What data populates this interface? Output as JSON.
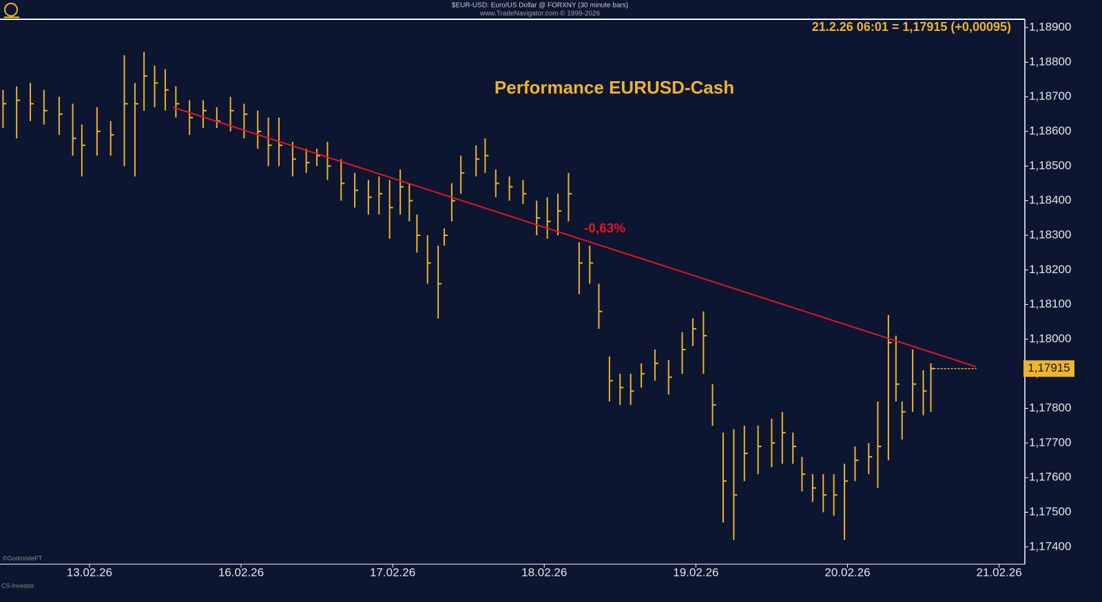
{
  "chart_data": {
    "type": "hlc",
    "source": "$EUR-USD: Euro/US Dollar @ FORXNY  (30 minute bars)",
    "copyright": "www.TradeNavigator.com © 1999-2026",
    "title": "Performance EURUSD-Cash",
    "quote": "21.2.26 06:01 = 1,17915 (+0,00095)",
    "footer_top": "©GodmodeFT",
    "footer_bottom": "CS-Investor",
    "color": "#f0b428",
    "x": [
      -0.57,
      -0.48,
      -0.39,
      -0.3,
      -0.2,
      -0.11,
      -0.05,
      0.05,
      0.14,
      0.23,
      0.3,
      0.36,
      0.43,
      0.5,
      0.57,
      0.66,
      0.75,
      0.84,
      0.93,
      1.02,
      1.11,
      1.18,
      1.25,
      1.34,
      1.43,
      1.5,
      1.57,
      1.66,
      1.75,
      1.84,
      1.91,
      1.98,
      2.05,
      2.11,
      2.16,
      2.23,
      2.3,
      2.34,
      2.39,
      2.45,
      2.55,
      2.61,
      2.68,
      2.77,
      2.86,
      2.95,
      3.02,
      3.09,
      3.16,
      3.23,
      3.3,
      3.36,
      3.43,
      3.5,
      3.57,
      3.64,
      3.73,
      3.82,
      3.91,
      3.98,
      4.05,
      4.11,
      4.18,
      4.25,
      4.32,
      4.41,
      4.5,
      4.57,
      4.64,
      4.7,
      4.77,
      4.84,
      4.91,
      4.98,
      5.05,
      5.14,
      5.2,
      5.27,
      5.32,
      5.36,
      5.43,
      5.5,
      5.55
    ],
    "high": [
      1.1872,
      1.1873,
      1.1874,
      1.1872,
      1.187,
      1.1868,
      1.1862,
      1.1867,
      1.1863,
      1.1882,
      1.1874,
      1.1883,
      1.1879,
      1.1878,
      1.1873,
      1.1869,
      1.1869,
      1.1867,
      1.187,
      1.1868,
      1.1866,
      1.1864,
      1.1864,
      1.1857,
      1.1855,
      1.1855,
      1.1857,
      1.1852,
      1.1848,
      1.1846,
      1.1847,
      1.1846,
      1.1849,
      1.1845,
      1.1836,
      1.183,
      1.1827,
      1.1832,
      1.1845,
      1.1853,
      1.1856,
      1.1858,
      1.1849,
      1.1847,
      1.1846,
      1.184,
      1.1841,
      1.1842,
      1.1848,
      1.1828,
      1.1827,
      1.1816,
      1.1795,
      1.179,
      1.179,
      1.1793,
      1.1797,
      1.1794,
      1.1802,
      1.1806,
      1.1808,
      1.1787,
      1.1773,
      1.1774,
      1.1775,
      1.1775,
      1.1777,
      1.1779,
      1.1773,
      1.1766,
      1.1761,
      1.1761,
      1.1761,
      1.1764,
      1.1769,
      1.177,
      1.1782,
      1.1807,
      1.1801,
      1.1782,
      1.1797,
      1.1791,
      1.1793
    ],
    "low": [
      1.1861,
      1.1858,
      1.1863,
      1.1862,
      1.1859,
      1.1853,
      1.1847,
      1.1853,
      1.1853,
      1.185,
      1.1847,
      1.1866,
      1.1867,
      1.1866,
      1.1864,
      1.1859,
      1.1861,
      1.1861,
      1.186,
      1.1858,
      1.1855,
      1.185,
      1.185,
      1.1847,
      1.1848,
      1.185,
      1.1846,
      1.184,
      1.1838,
      1.1836,
      1.1836,
      1.1829,
      1.1836,
      1.1834,
      1.1825,
      1.1816,
      1.1806,
      1.1827,
      1.1834,
      1.1842,
      1.1847,
      1.1848,
      1.1841,
      1.184,
      1.1839,
      1.183,
      1.1829,
      1.183,
      1.1834,
      1.1813,
      1.1816,
      1.1803,
      1.1782,
      1.1781,
      1.1781,
      1.1786,
      1.1788,
      1.1784,
      1.179,
      1.1798,
      1.179,
      1.1775,
      1.1747,
      1.1742,
      1.1759,
      1.1761,
      1.1763,
      1.1764,
      1.1764,
      1.1756,
      1.1753,
      1.175,
      1.1749,
      1.1742,
      1.1759,
      1.1761,
      1.1757,
      1.1765,
      1.1782,
      1.1771,
      1.1779,
      1.1778,
      1.1779
    ],
    "close": [
      1.1868,
      1.1869,
      1.1868,
      1.1866,
      1.1865,
      1.1858,
      1.1856,
      1.186,
      1.1859,
      1.1868,
      1.1868,
      1.1876,
      1.1874,
      1.1872,
      1.1868,
      1.1864,
      1.1866,
      1.1863,
      1.1866,
      1.1865,
      1.186,
      1.1856,
      1.1856,
      1.1852,
      1.1851,
      1.1853,
      1.185,
      1.1845,
      1.1843,
      1.1841,
      1.1842,
      1.1838,
      1.1844,
      1.184,
      1.183,
      1.1822,
      1.1816,
      1.183,
      1.184,
      1.1848,
      1.1852,
      1.1853,
      1.1845,
      1.1844,
      1.1842,
      1.1835,
      1.1834,
      1.1837,
      1.1842,
      1.1822,
      1.1822,
      1.1808,
      1.1788,
      1.1786,
      1.1785,
      1.179,
      1.1793,
      1.1789,
      1.1797,
      1.1803,
      1.1801,
      1.1781,
      1.1759,
      1.1755,
      1.1767,
      1.1769,
      1.177,
      1.1773,
      1.1769,
      1.1761,
      1.1757,
      1.1755,
      1.1755,
      1.1759,
      1.1765,
      1.1766,
      1.1769,
      1.1799,
      1.1787,
      1.1779,
      1.1787,
      1.1785,
      1.17915
    ],
    "trendline": {
      "x": [
        0.55,
        5.85
      ],
      "y": [
        1.1867,
        1.1792
      ],
      "color": "#e8141e",
      "label": "-0,63%"
    },
    "last_price": {
      "value": 1.17915,
      "label": "1,17915"
    },
    "xlim": [
      -0.59,
      6.17
    ],
    "ylim": [
      1.1735,
      1.18924
    ],
    "xticks": [
      {
        "value": 0,
        "label": "13.02.26"
      },
      {
        "value": 1,
        "label": "16.02.26"
      },
      {
        "value": 2,
        "label": "17.02.26"
      },
      {
        "value": 3,
        "label": "18.02.26"
      },
      {
        "value": 4,
        "label": "19.02.26"
      },
      {
        "value": 5,
        "label": "20.02.26"
      },
      {
        "value": 6,
        "label": "21.02.26"
      }
    ],
    "yticks": [
      {
        "value": 1.174,
        "label": "1,17400"
      },
      {
        "value": 1.175,
        "label": "1,17500"
      },
      {
        "value": 1.176,
        "label": "1,17600"
      },
      {
        "value": 1.177,
        "label": "1,17700"
      },
      {
        "value": 1.178,
        "label": "1,17800"
      },
      {
        "value": 1.179,
        "label": "1,17900"
      },
      {
        "value": 1.18,
        "label": "1,18000"
      },
      {
        "value": 1.181,
        "label": "1,18100"
      },
      {
        "value": 1.182,
        "label": "1,18200"
      },
      {
        "value": 1.183,
        "label": "1,18300"
      },
      {
        "value": 1.184,
        "label": "1,18400"
      },
      {
        "value": 1.185,
        "label": "1,18500"
      },
      {
        "value": 1.186,
        "label": "1,18600"
      },
      {
        "value": 1.187,
        "label": "1,18700"
      },
      {
        "value": 1.188,
        "label": "1,18800"
      },
      {
        "value": 1.189,
        "label": "1,18900"
      }
    ]
  }
}
